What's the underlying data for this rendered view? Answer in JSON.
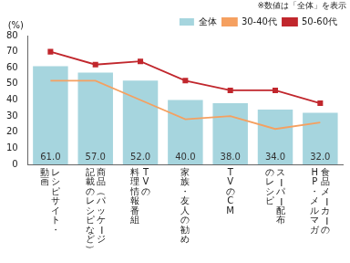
{
  "chart_data": {
    "type": "bar",
    "y_label": "(%)",
    "annotations": [
      "※数値は「全体」を表示"
    ],
    "categories": [
      "レシピサイト・\n動画",
      "商品（パッケージ\n記載のレシピなど）",
      "TVの\n料理情報番組",
      "家族・友人の勧め",
      "TVのCM",
      "スーパー配布\nのレシピ",
      "食品メーカーの\nHP・メルマガ"
    ],
    "series": [
      {
        "name": "全体",
        "type": "bar",
        "color": "#a6d5de",
        "values": [
          61,
          57,
          52,
          40,
          38,
          34,
          32
        ],
        "value_labels": [
          "61.0",
          "57.0",
          "52.0",
          "40.0",
          "38.0",
          "34.0",
          "32.0"
        ]
      },
      {
        "name": "30-40代",
        "type": "line",
        "color": "#f5a060",
        "marker": "none",
        "values": [
          52,
          52,
          40,
          28,
          30,
          22,
          26
        ]
      },
      {
        "name": "50-60代",
        "type": "line",
        "color": "#c1272d",
        "marker": "square",
        "values": [
          70,
          62,
          64,
          52,
          46,
          46,
          38
        ]
      }
    ],
    "ylim": [
      0,
      80
    ],
    "yticks": [
      0,
      10,
      20,
      30,
      40,
      50,
      60,
      70,
      80
    ],
    "grid": false,
    "legend": "top-right",
    "data_labels": true
  }
}
